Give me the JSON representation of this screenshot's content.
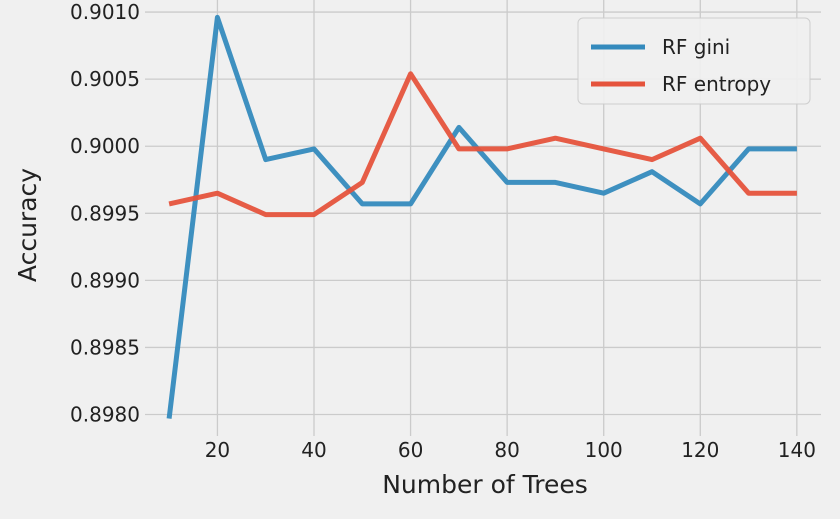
{
  "chart_data": {
    "type": "line",
    "xlabel": "Number of Trees",
    "ylabel": "Accuracy",
    "x": [
      10,
      20,
      30,
      40,
      50,
      60,
      70,
      80,
      90,
      100,
      110,
      120,
      130,
      140
    ],
    "xlim": [
      5,
      145
    ],
    "ylim": [
      0.89784,
      0.90109
    ],
    "xticks": [
      20,
      40,
      60,
      80,
      100,
      120,
      140
    ],
    "xtick_labels": [
      "20",
      "40",
      "60",
      "80",
      "100",
      "120",
      "140"
    ],
    "yticks": [
      0.898,
      0.8985,
      0.899,
      0.8995,
      0.9,
      0.9005,
      0.901
    ],
    "ytick_labels": [
      "0.8980",
      "0.8985",
      "0.8990",
      "0.8995",
      "0.9000",
      "0.9005",
      "0.9010"
    ],
    "grid": true,
    "legend_position": "top-right",
    "series": [
      {
        "name": "RF gini",
        "color": "#348ABD",
        "values": [
          0.89797,
          0.90096,
          0.8999,
          0.89998,
          0.89957,
          0.89957,
          0.90014,
          0.89973,
          0.89973,
          0.89965,
          0.89981,
          0.89957,
          0.89998,
          0.89998
        ]
      },
      {
        "name": "RF entropy",
        "color": "#E5533C",
        "values": [
          0.89957,
          0.89965,
          0.89949,
          0.89949,
          0.89973,
          0.90054,
          0.89998,
          0.89998,
          0.90006,
          0.89998,
          0.8999,
          0.90006,
          0.89965,
          0.89965
        ]
      }
    ]
  }
}
